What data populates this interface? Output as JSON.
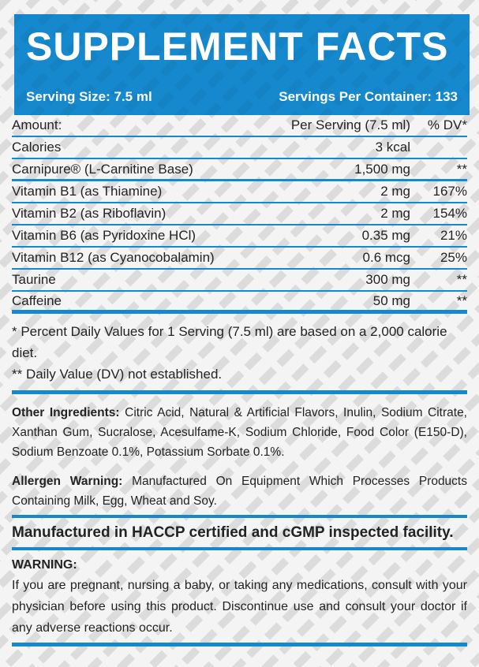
{
  "header": {
    "title": "SUPPLEMENT FACTS",
    "serving_size": "Serving Size: 7.5 ml",
    "servings_per_container": "Servings Per Container: 133"
  },
  "table": {
    "columns": {
      "amount": "Amount:",
      "per_serving": "Per Serving (7.5 ml)",
      "dv": "% DV*"
    },
    "rows": [
      {
        "name": "Calories",
        "amount": "3 kcal",
        "dv": ""
      },
      {
        "name": "Carnipure® (L-Carnitine Base)",
        "amount": "1,500 mg",
        "dv": "**"
      },
      {
        "name": "Vitamin B1 (as Thiamine)",
        "amount": "2 mg",
        "dv": "167%"
      },
      {
        "name": "Vitamin B2 (as Riboflavin)",
        "amount": "2 mg",
        "dv": "154%"
      },
      {
        "name": "Vitamin B6 (as Pyridoxine HCl)",
        "amount": "0.35 mg",
        "dv": "21%"
      },
      {
        "name": "Vitamin B12 (as Cyanocobalamin)",
        "amount": "0.6 mcg",
        "dv": "25%"
      },
      {
        "name": "Taurine",
        "amount": "300 mg",
        "dv": "**"
      },
      {
        "name": "Caffeine",
        "amount": "50 mg",
        "dv": "**"
      }
    ]
  },
  "footnotes": {
    "dv_note": "* Percent Daily Values for 1 Serving (7.5 ml) are based on a 2,000 calorie diet.",
    "not_established": "** Daily Value (DV) not established."
  },
  "other_ingredients": {
    "label": "Other Ingredients:",
    "text": "Citric Acid, Natural & Artificial Flavors, Inulin, Sodium Citrate, Xanthan Gum, Sucralose, Acesulfame-K, Sodium Chloride, Food Color (E150-D), Sodium Benzoate 0.1%, Potassium Sorbate 0.1%."
  },
  "allergen_warning": {
    "label": "Allergen Warning:",
    "text": "Manufactured On Equipment Which Processes Products Containing Milk, Egg, Wheat and Soy."
  },
  "facility_statement": "Manufactured in HACCP certified and cGMP inspected facility.",
  "warning": {
    "label": "WARNING:",
    "text": "If you are pregnant, nursing a baby, or taking any medications, consult with your physician before using this product. Discontinue use and consult your doctor if any adverse reactions occur."
  },
  "colors": {
    "accent": "#1689CE",
    "text": "#232323",
    "stripe": "#DCDCDC",
    "bg": "#F4F4F4",
    "header_text": "#FFFFFF"
  }
}
